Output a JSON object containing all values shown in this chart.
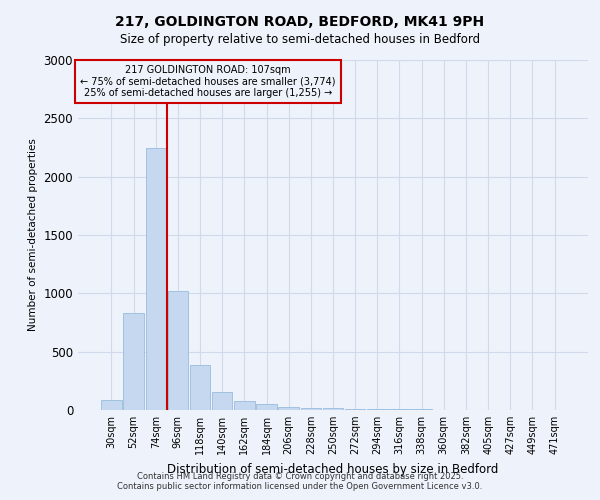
{
  "title1": "217, GOLDINGTON ROAD, BEDFORD, MK41 9PH",
  "title2": "Size of property relative to semi-detached houses in Bedford",
  "xlabel": "Distribution of semi-detached houses by size in Bedford",
  "ylabel": "Number of semi-detached properties",
  "annotation_title": "217 GOLDINGTON ROAD: 107sqm",
  "annotation_line1": "← 75% of semi-detached houses are smaller (3,774)",
  "annotation_line2": "25% of semi-detached houses are larger (1,255) →",
  "footer1": "Contains HM Land Registry data © Crown copyright and database right 2025.",
  "footer2": "Contains public sector information licensed under the Open Government Licence v3.0.",
  "bin_labels": [
    "30sqm",
    "52sqm",
    "74sqm",
    "96sqm",
    "118sqm",
    "140sqm",
    "162sqm",
    "184sqm",
    "206sqm",
    "228sqm",
    "250sqm",
    "272sqm",
    "294sqm",
    "316sqm",
    "338sqm",
    "360sqm",
    "382sqm",
    "405sqm",
    "427sqm",
    "449sqm",
    "471sqm"
  ],
  "bar_heights": [
    85,
    830,
    2250,
    1020,
    390,
    155,
    80,
    50,
    30,
    20,
    15,
    10,
    8,
    5,
    5,
    3,
    3,
    2,
    2,
    1,
    1
  ],
  "bar_color": "#c5d8f0",
  "bar_edge_color": "#8ab4d8",
  "vline_color": "#cc0000",
  "annotation_box_color": "#cc0000",
  "grid_color": "#d0daea",
  "background_color": "#eef2fa",
  "ylim": [
    0,
    3000
  ],
  "yticks": [
    0,
    500,
    1000,
    1500,
    2000,
    2500,
    3000
  ]
}
